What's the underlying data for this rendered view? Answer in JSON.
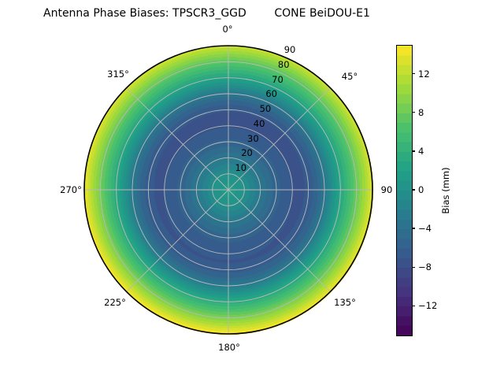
{
  "title": "Antenna Phase Biases: TPSCR3_GGD        CONE BeiDOU-E1",
  "colors": {
    "background": "#ffffff",
    "grid": "#b9b9b9",
    "axis_edge": "#000000",
    "text": "#000000"
  },
  "chart_data": {
    "type": "heatmap",
    "projection": "polar",
    "title": "Antenna Phase Biases: TPSCR3_GGD        CONE BeiDOU-E1",
    "theta_zero": "top",
    "theta_direction": "clockwise",
    "theta_tick_angles_deg": [
      0,
      45,
      90,
      135,
      180,
      225,
      270,
      315
    ],
    "theta_tick_labels": [
      "0°",
      "45°",
      "90",
      "135°",
      "180°",
      "225°",
      "270°",
      "315°"
    ],
    "r_ticks": [
      10,
      20,
      30,
      40,
      50,
      60,
      70,
      80,
      90
    ],
    "r_tick_labels": [
      "10",
      "20",
      "30",
      "40",
      "50",
      "60",
      "70",
      "80",
      "90"
    ],
    "r_max": 90,
    "r_label_angle_deg": 22.5,
    "grid": true,
    "radial_profile": {
      "r": [
        0,
        5,
        10,
        15,
        20,
        25,
        30,
        35,
        40,
        45,
        50,
        55,
        60,
        65,
        70,
        75,
        80,
        85,
        90
      ],
      "bias_mm": [
        1.6,
        0.9,
        0.0,
        -1.6,
        -3.0,
        -4.4,
        -5.6,
        -6.5,
        -7.0,
        -7.2,
        -6.7,
        -5.2,
        -2.9,
        0.2,
        3.0,
        5.6,
        8.2,
        11.0,
        14.0
      ]
    },
    "asymmetry": {
      "direction_deg": 190,
      "amplitude_mm": 1.3,
      "exponent": 3
    },
    "levels_step_mm": 1,
    "colorbar": {
      "label": "Bias (mm)",
      "tick_labels": [
        "12",
        "8",
        "4",
        "0",
        "−4",
        "−8",
        "−12"
      ],
      "tick_values": [
        12,
        8,
        4,
        0,
        -4,
        -8,
        -12
      ],
      "vmin": -15,
      "vmax": 15,
      "n_bands": 30,
      "orientation": "vertical"
    },
    "colormap": {
      "name": "viridis",
      "stops": [
        "#440154",
        "#46327e",
        "#365c8d",
        "#277f8e",
        "#1fa187",
        "#4ac16d",
        "#a0da39",
        "#fde725"
      ]
    }
  }
}
